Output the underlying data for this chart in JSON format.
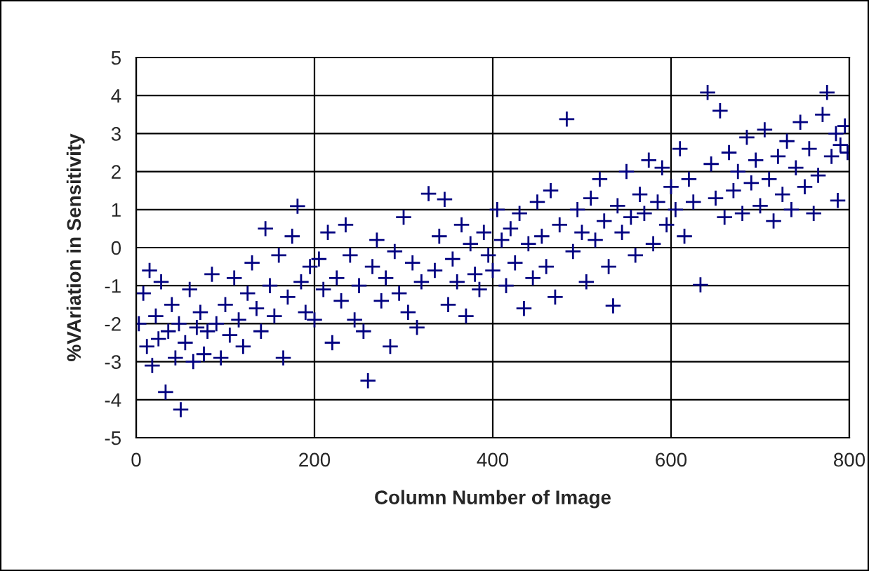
{
  "chart_data": {
    "type": "scatter",
    "xlabel": "Column Number of Image",
    "ylabel": "%VAriation in Sensitivity",
    "xlim": [
      0,
      800
    ],
    "xticks": [
      0,
      200,
      400,
      600,
      800
    ],
    "ylim": [
      -5,
      5
    ],
    "yticks": [
      -5,
      -4,
      -3,
      -2,
      -1,
      0,
      1,
      2,
      3,
      4,
      5
    ],
    "grid": true,
    "marker": "cross",
    "legend": false,
    "series": [
      {
        "color": "#000080",
        "x": [
          3,
          8,
          12,
          15,
          18,
          22,
          25,
          28,
          33,
          36,
          40,
          44,
          48,
          50,
          55,
          60,
          64,
          68,
          72,
          76,
          80,
          85,
          90,
          95,
          100,
          105,
          110,
          115,
          120,
          125,
          130,
          135,
          140,
          145,
          150,
          155,
          160,
          165,
          170,
          175,
          181,
          185,
          190,
          195,
          200,
          205,
          210,
          215,
          220,
          225,
          230,
          235,
          240,
          245,
          250,
          255,
          260,
          265,
          270,
          275,
          280,
          285,
          290,
          295,
          300,
          305,
          310,
          315,
          320,
          328,
          335,
          340,
          346,
          350,
          355,
          360,
          365,
          370,
          375,
          380,
          385,
          390,
          395,
          400,
          405,
          410,
          415,
          420,
          425,
          430,
          435,
          440,
          445,
          450,
          455,
          460,
          465,
          470,
          475,
          483,
          490,
          495,
          500,
          505,
          510,
          515,
          520,
          525,
          530,
          535,
          540,
          545,
          550,
          555,
          560,
          565,
          570,
          575,
          580,
          585,
          590,
          595,
          600,
          605,
          610,
          615,
          620,
          625,
          633,
          641,
          645,
          650,
          655,
          660,
          665,
          670,
          675,
          680,
          685,
          690,
          695,
          700,
          705,
          710,
          715,
          720,
          725,
          730,
          735,
          740,
          745,
          750,
          755,
          760,
          765,
          770,
          775,
          780,
          785,
          787,
          790,
          795,
          798
        ],
        "values": [
          -2.0,
          -1.2,
          -2.6,
          -0.6,
          -3.1,
          -1.8,
          -2.4,
          -0.9,
          -3.8,
          -2.2,
          -1.5,
          -2.9,
          -2.0,
          -4.26,
          -2.5,
          -1.1,
          -3.0,
          -2.1,
          -1.7,
          -2.8,
          -2.2,
          -0.7,
          -2.0,
          -2.9,
          -1.5,
          -2.3,
          -0.8,
          -1.9,
          -2.6,
          -1.2,
          -0.4,
          -1.6,
          -2.2,
          0.5,
          -1.0,
          -1.8,
          -0.2,
          -2.9,
          -1.3,
          0.3,
          1.09,
          -0.9,
          -1.7,
          -0.5,
          -1.9,
          -0.3,
          -1.1,
          0.4,
          -2.5,
          -0.8,
          -1.4,
          0.6,
          -0.2,
          -1.9,
          -1.0,
          -2.2,
          -3.5,
          -0.5,
          0.2,
          -1.4,
          -0.8,
          -2.6,
          -0.1,
          -1.2,
          0.8,
          -1.7,
          -0.4,
          -2.1,
          -0.9,
          1.42,
          -0.6,
          0.3,
          1.27,
          -1.5,
          -0.3,
          -0.9,
          0.6,
          -1.8,
          0.1,
          -0.7,
          -1.1,
          0.4,
          -0.2,
          -0.6,
          1.0,
          0.2,
          -1.0,
          0.5,
          -0.4,
          0.9,
          -1.6,
          0.1,
          -0.8,
          1.2,
          0.3,
          -0.5,
          1.5,
          -1.3,
          0.6,
          3.38,
          -0.1,
          1.0,
          0.4,
          -0.9,
          1.3,
          0.2,
          1.8,
          0.7,
          -0.5,
          -1.53,
          1.1,
          0.4,
          2.0,
          0.8,
          -0.2,
          1.4,
          0.9,
          2.3,
          0.1,
          1.2,
          2.1,
          0.6,
          1.6,
          1.0,
          2.6,
          0.3,
          1.8,
          1.2,
          -0.98,
          4.08,
          2.2,
          1.3,
          3.6,
          0.8,
          2.5,
          1.5,
          2.0,
          0.9,
          2.9,
          1.7,
          2.3,
          1.1,
          3.1,
          1.8,
          0.7,
          2.4,
          1.4,
          2.8,
          1.0,
          2.1,
          3.3,
          1.6,
          2.6,
          0.9,
          1.9,
          3.5,
          4.08,
          2.4,
          3.0,
          1.24,
          2.7,
          3.2,
          2.5
        ]
      }
    ]
  }
}
